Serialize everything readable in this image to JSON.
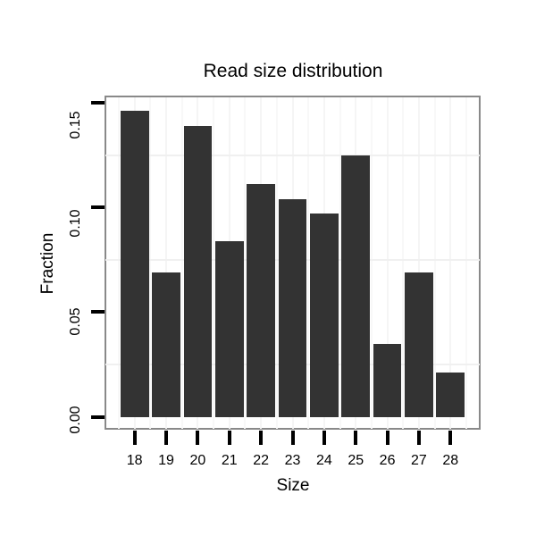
{
  "chart_data": {
    "type": "bar",
    "title": "Read size distribution",
    "xlabel": "Size",
    "ylabel": "Fraction",
    "categories": [
      18,
      19,
      20,
      21,
      22,
      23,
      24,
      25,
      26,
      27,
      28
    ],
    "values": [
      0.146,
      0.069,
      0.139,
      0.084,
      0.111,
      0.104,
      0.097,
      0.125,
      0.035,
      0.069,
      0.021
    ],
    "x_tick_labels": [
      "18",
      "19",
      "20",
      "21",
      "22",
      "23",
      "24",
      "25",
      "26",
      "27",
      "28"
    ],
    "y_tick_labels": [
      "0.00",
      "0.05",
      "0.10",
      "0.15"
    ],
    "y_tick_values": [
      0.0,
      0.05,
      0.1,
      0.15
    ],
    "minor_gridlines_y": [
      0.025,
      0.075,
      0.125
    ],
    "ylim": [
      -0.007,
      0.153
    ],
    "legend": "none",
    "grid": "faint minor horizontal + vertical category guides",
    "colors": {
      "bar": "#333333",
      "panel_border": "#898989",
      "grid_vertical": "#f5f5f5",
      "grid_horizontal": "#f0f0f0",
      "text": "#000000",
      "background": "#ffffff"
    }
  }
}
